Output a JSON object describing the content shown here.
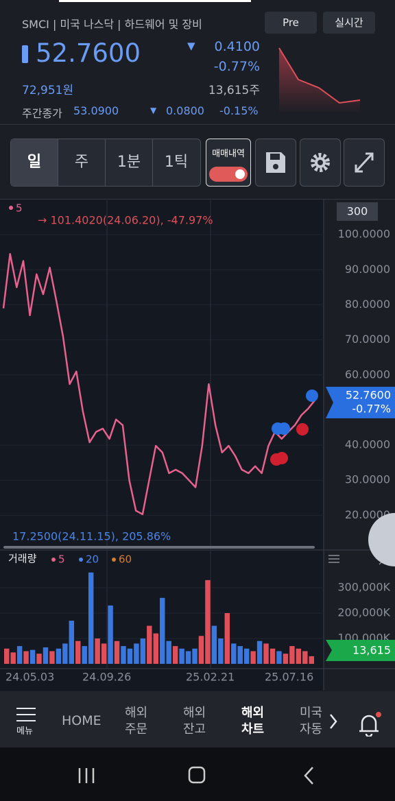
{
  "header": {
    "symbol_info": "SMCI | 미국 나스닥 | 하드웨어 및 장비",
    "buttons": [
      "Pre",
      "실시간"
    ],
    "price": "52.7600",
    "change": "0.4100",
    "change_pct": "-0.77%",
    "price_krw": "72,951원",
    "volume": "13,615주",
    "weekly_close_label": "주간종가",
    "weekly_close": "53.0900",
    "weekly_change": "0.0800",
    "weekly_change_pct": "-0.15%"
  },
  "toolbar": {
    "tabs": [
      "일",
      "주",
      "1분",
      "1틱"
    ],
    "toggle_label": "매매내역"
  },
  "price_chart": {
    "legend": "5",
    "period_box": "300",
    "high_note": "→ 101.4020(24.06.20), -47.97%",
    "low_note": "17.2500(24.11.15), 205.86%",
    "last_price": "52.7600",
    "last_change": "-0.77%",
    "ylim": [
      10.5,
      109.8
    ],
    "yticks": [
      {
        "value": 100,
        "label": "100.0000"
      },
      {
        "value": 90,
        "label": "90.0000"
      },
      {
        "value": 80,
        "label": "80.0000"
      },
      {
        "value": 70,
        "label": "70.0000"
      },
      {
        "value": 60,
        "label": "60.0000"
      },
      {
        "value": 40,
        "label": "40.0000"
      },
      {
        "value": 30,
        "label": "30.0000"
      },
      {
        "value": 20,
        "label": "20.0000"
      }
    ],
    "color": "#e8628f",
    "values": [
      79,
      94.5,
      85,
      92.5,
      77,
      88.7,
      83,
      90.6,
      81,
      71,
      57.4,
      61,
      49.6,
      40.8,
      43.8,
      44.7,
      41.8,
      47.3,
      45.7,
      30,
      21.3,
      20.3,
      30,
      39.8,
      37.9,
      32,
      33,
      32,
      30,
      28,
      39.8,
      57.4,
      45.7,
      37.9,
      39.8,
      36.9,
      33,
      32,
      34,
      32,
      39.8,
      43.8,
      41.8,
      43.8,
      45.7,
      48.6,
      50.4,
      52.76
    ]
  },
  "volume_chart": {
    "title": "거래량",
    "legend": [
      "5",
      "20",
      "60"
    ],
    "last_volume": "13,615",
    "ylim": [
      0,
      373000
    ],
    "yticks": [
      {
        "value": 300000,
        "label": "300,000K"
      },
      {
        "value": 200000,
        "label": "200,000K"
      },
      {
        "value": 100000,
        "label": "100,000K"
      }
    ],
    "values": [
      60000,
      45000,
      70000,
      50000,
      55000,
      40000,
      65000,
      50000,
      60000,
      80000,
      170000,
      90000,
      70000,
      360000,
      100000,
      80000,
      230000,
      90000,
      70000,
      60000,
      80000,
      100000,
      150000,
      120000,
      260000,
      90000,
      70000,
      60000,
      50000,
      60000,
      110000,
      330000,
      150000,
      100000,
      200000,
      80000,
      70000,
      60000,
      50000,
      90000,
      80000,
      60000,
      50000,
      40000,
      70000,
      60000,
      50000,
      30000
    ]
  },
  "dates": [
    "24.05.03",
    "24.09.26",
    "25.02.21",
    "25.07.16"
  ],
  "nav": {
    "menu": "메뉴",
    "home": "HOME",
    "items": [
      [
        "해외",
        "주문"
      ],
      [
        "해외",
        "잔고"
      ],
      [
        "해외",
        "차트"
      ],
      [
        "미국",
        "자동"
      ]
    ]
  }
}
